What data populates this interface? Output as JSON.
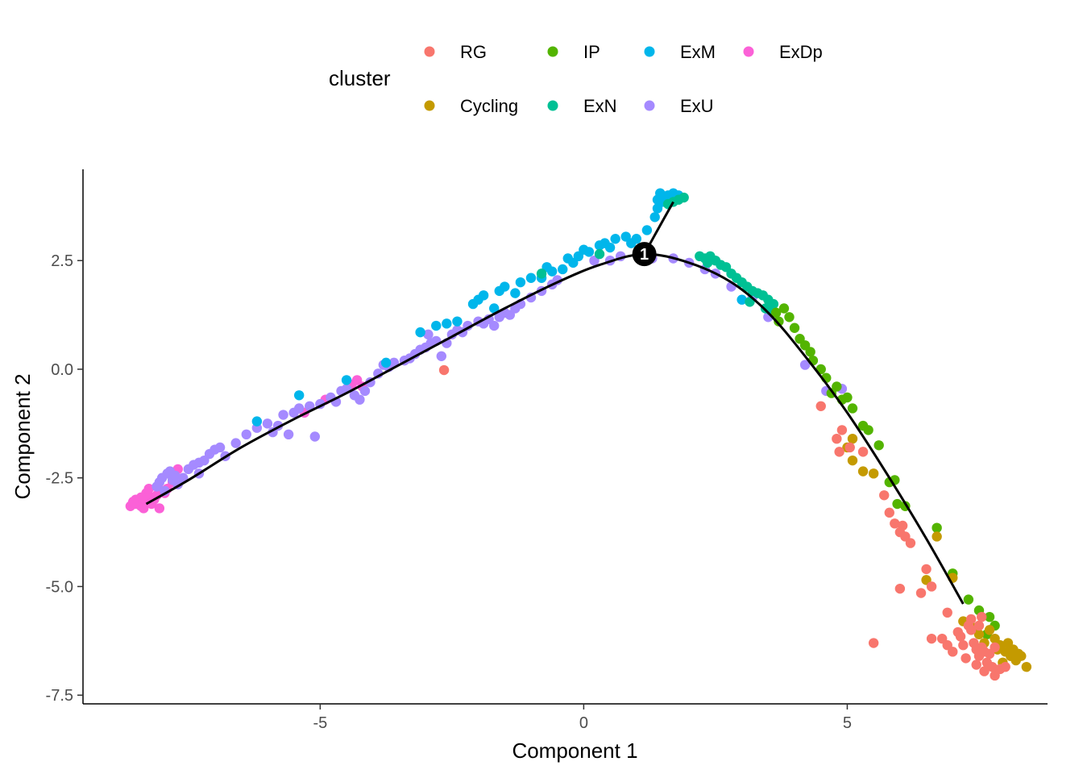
{
  "chart_data": {
    "type": "scatter",
    "xlabel": "Component 1",
    "ylabel": "Component 2",
    "xlim": [
      -9.5,
      8.8
    ],
    "ylim": [
      -7.7,
      4.6
    ],
    "xticks": [
      -5,
      0,
      5
    ],
    "xtick_labels": [
      "-5",
      "0",
      "5"
    ],
    "yticks": [
      2.5,
      0,
      -2.5,
      -5,
      -7.5
    ],
    "ytick_labels": [
      "2.5",
      "0.0",
      "-2.5",
      "-5.0",
      "-7.5"
    ],
    "grid": false,
    "legend": {
      "title": "cluster",
      "placement": "top",
      "entries": [
        {
          "label": "RG",
          "color": "#F8766D"
        },
        {
          "label": "Cycling",
          "color": "#C49A00"
        },
        {
          "label": "IP",
          "color": "#53B400"
        },
        {
          "label": "ExN",
          "color": "#00C094"
        },
        {
          "label": "ExM",
          "color": "#00B6EB"
        },
        {
          "label": "ExU",
          "color": "#A58AFF"
        },
        {
          "label": "ExDp",
          "color": "#FB61D7"
        }
      ]
    },
    "trajectory": {
      "branch_node": {
        "x": 1.15,
        "y": 2.65,
        "label": "1"
      },
      "main_path": [
        [
          -8.3,
          -3.1
        ],
        [
          -7.5,
          -2.55
        ],
        [
          -6.5,
          -1.8
        ],
        [
          -5.5,
          -1.15
        ],
        [
          -4.5,
          -0.55
        ],
        [
          -3.5,
          0.1
        ],
        [
          -2.5,
          0.75
        ],
        [
          -1.5,
          1.4
        ],
        [
          -0.5,
          2.0
        ],
        [
          0.3,
          2.4
        ],
        [
          1.15,
          2.65
        ],
        [
          2.0,
          2.45
        ],
        [
          2.8,
          2.0
        ],
        [
          3.5,
          1.3
        ],
        [
          4.2,
          0.3
        ],
        [
          5.0,
          -1.0
        ],
        [
          5.8,
          -2.5
        ],
        [
          6.5,
          -3.9
        ],
        [
          7.2,
          -5.4
        ]
      ],
      "branch_path": [
        [
          1.15,
          2.65
        ],
        [
          1.4,
          3.2
        ],
        [
          1.7,
          3.85
        ]
      ]
    },
    "series": [
      {
        "name": "ExDp",
        "color": "#FB61D7",
        "points": [
          [
            -8.6,
            -3.15
          ],
          [
            -8.5,
            -3.1
          ],
          [
            -8.4,
            -3.15
          ],
          [
            -8.3,
            -3.05
          ],
          [
            -8.5,
            -3.0
          ],
          [
            -8.2,
            -2.95
          ],
          [
            -8.1,
            -2.9
          ],
          [
            -8.3,
            -2.85
          ],
          [
            -8.0,
            -2.8
          ],
          [
            -7.9,
            -2.75
          ],
          [
            -8.4,
            -2.95
          ],
          [
            -8.2,
            -3.1
          ],
          [
            -8.35,
            -3.2
          ],
          [
            -8.55,
            -3.05
          ],
          [
            -7.8,
            -2.6
          ],
          [
            -8.05,
            -3.2
          ],
          [
            -7.7,
            -2.3
          ],
          [
            -5.3,
            -1.0
          ],
          [
            -4.4,
            -0.35
          ],
          [
            -4.9,
            -0.7
          ],
          [
            -4.2,
            -0.4
          ],
          [
            -4.3,
            -0.25
          ],
          [
            -8.15,
            -3.0
          ],
          [
            -7.95,
            -2.85
          ],
          [
            -8.25,
            -2.75
          ]
        ]
      },
      {
        "name": "ExU",
        "color": "#A58AFF",
        "points": [
          [
            -8.0,
            -2.5
          ],
          [
            -7.9,
            -2.4
          ],
          [
            -7.8,
            -2.55
          ],
          [
            -7.7,
            -2.65
          ],
          [
            -8.1,
            -2.7
          ],
          [
            -7.95,
            -2.8
          ],
          [
            -7.75,
            -2.45
          ],
          [
            -7.85,
            -2.35
          ],
          [
            -7.6,
            -2.5
          ],
          [
            -8.05,
            -2.6
          ],
          [
            -7.5,
            -2.3
          ],
          [
            -7.4,
            -2.2
          ],
          [
            -7.3,
            -2.15
          ],
          [
            -7.2,
            -2.1
          ],
          [
            -7.1,
            -1.95
          ],
          [
            -7.0,
            -1.85
          ],
          [
            -6.9,
            -1.8
          ],
          [
            -7.3,
            -2.4
          ],
          [
            -6.8,
            -2.0
          ],
          [
            -6.6,
            -1.7
          ],
          [
            -6.4,
            -1.5
          ],
          [
            -6.2,
            -1.35
          ],
          [
            -6.0,
            -1.25
          ],
          [
            -5.9,
            -1.45
          ],
          [
            -5.8,
            -1.3
          ],
          [
            -5.7,
            -1.05
          ],
          [
            -5.5,
            -1.0
          ],
          [
            -5.6,
            -1.5
          ],
          [
            -5.4,
            -0.9
          ],
          [
            -5.2,
            -0.85
          ],
          [
            -5.0,
            -0.8
          ],
          [
            -4.8,
            -0.65
          ],
          [
            -4.7,
            -0.75
          ],
          [
            -4.6,
            -0.5
          ],
          [
            -4.5,
            -0.45
          ],
          [
            -4.35,
            -0.6
          ],
          [
            -4.25,
            -0.7
          ],
          [
            -4.15,
            -0.5
          ],
          [
            -4.05,
            -0.3
          ],
          [
            -5.1,
            -1.55
          ],
          [
            -3.9,
            -0.1
          ],
          [
            -3.7,
            0.05
          ],
          [
            -3.8,
            0.1
          ],
          [
            -3.6,
            0.15
          ],
          [
            -3.4,
            0.2
          ],
          [
            -3.2,
            0.35
          ],
          [
            -3.1,
            0.45
          ],
          [
            -3.0,
            0.5
          ],
          [
            -2.9,
            0.6
          ],
          [
            -2.8,
            0.65
          ],
          [
            -2.7,
            0.3
          ],
          [
            -2.6,
            0.6
          ],
          [
            -2.5,
            0.8
          ],
          [
            -2.4,
            0.9
          ],
          [
            -2.3,
            0.85
          ],
          [
            -2.2,
            1.0
          ],
          [
            -2.0,
            1.1
          ],
          [
            -1.9,
            1.05
          ],
          [
            -1.8,
            1.15
          ],
          [
            -1.7,
            1.0
          ],
          [
            -1.6,
            1.2
          ],
          [
            -1.5,
            1.3
          ],
          [
            -1.4,
            1.25
          ],
          [
            -1.3,
            1.4
          ],
          [
            -1.2,
            1.5
          ],
          [
            -1.0,
            1.65
          ],
          [
            -0.8,
            1.8
          ],
          [
            -0.6,
            1.95
          ],
          [
            -0.5,
            2.05
          ],
          [
            0.2,
            2.5
          ],
          [
            0.5,
            2.5
          ],
          [
            0.7,
            2.6
          ],
          [
            1.3,
            2.55
          ],
          [
            1.7,
            2.55
          ],
          [
            2.0,
            2.45
          ],
          [
            2.3,
            2.3
          ],
          [
            2.5,
            2.2
          ],
          [
            2.8,
            1.9
          ],
          [
            3.2,
            1.65
          ],
          [
            3.5,
            1.2
          ],
          [
            4.2,
            0.1
          ],
          [
            4.6,
            -0.5
          ],
          [
            4.9,
            -0.45
          ],
          [
            -3.3,
            0.25
          ],
          [
            -2.95,
            0.8
          ]
        ]
      },
      {
        "name": "ExM",
        "color": "#00B6EB",
        "points": [
          [
            -6.2,
            -1.2
          ],
          [
            -5.4,
            -0.6
          ],
          [
            -4.5,
            -0.25
          ],
          [
            -3.75,
            0.15
          ],
          [
            -3.1,
            0.85
          ],
          [
            -2.8,
            1.0
          ],
          [
            -2.6,
            1.05
          ],
          [
            -2.4,
            1.1
          ],
          [
            -2.1,
            1.5
          ],
          [
            -2.0,
            1.6
          ],
          [
            -1.9,
            1.7
          ],
          [
            -1.7,
            1.4
          ],
          [
            -1.6,
            1.8
          ],
          [
            -1.5,
            1.9
          ],
          [
            -1.3,
            1.75
          ],
          [
            -1.2,
            2.0
          ],
          [
            -1.0,
            2.1
          ],
          [
            -0.8,
            2.1
          ],
          [
            -0.6,
            2.25
          ],
          [
            -0.4,
            2.3
          ],
          [
            -0.2,
            2.45
          ],
          [
            -0.1,
            2.6
          ],
          [
            0.1,
            2.7
          ],
          [
            0.3,
            2.85
          ],
          [
            0.4,
            2.9
          ],
          [
            0.6,
            3.0
          ],
          [
            0.8,
            3.05
          ],
          [
            1.0,
            3.0
          ],
          [
            0.9,
            2.9
          ],
          [
            0.5,
            2.8
          ],
          [
            -0.7,
            2.35
          ],
          [
            -0.3,
            2.55
          ],
          [
            0.0,
            2.75
          ],
          [
            1.2,
            3.2
          ],
          [
            1.35,
            3.5
          ],
          [
            1.4,
            3.7
          ],
          [
            1.5,
            3.85
          ],
          [
            1.6,
            4.0
          ],
          [
            1.45,
            4.05
          ],
          [
            1.7,
            4.05
          ],
          [
            1.55,
            3.95
          ],
          [
            1.8,
            4.0
          ],
          [
            1.4,
            3.9
          ],
          [
            3.0,
            1.6
          ]
        ]
      },
      {
        "name": "ExN",
        "color": "#00C094",
        "points": [
          [
            1.9,
            3.95
          ],
          [
            1.7,
            3.85
          ],
          [
            1.6,
            3.8
          ],
          [
            1.8,
            3.9
          ],
          [
            2.2,
            2.6
          ],
          [
            2.3,
            2.55
          ],
          [
            2.4,
            2.6
          ],
          [
            2.35,
            2.45
          ],
          [
            2.6,
            2.4
          ],
          [
            2.7,
            2.35
          ],
          [
            2.8,
            2.2
          ],
          [
            2.9,
            2.1
          ],
          [
            3.0,
            2.0
          ],
          [
            3.1,
            1.9
          ],
          [
            3.2,
            1.8
          ],
          [
            3.3,
            1.75
          ],
          [
            3.4,
            1.7
          ],
          [
            3.5,
            1.6
          ],
          [
            3.15,
            1.55
          ],
          [
            3.45,
            1.4
          ],
          [
            3.55,
            1.35
          ],
          [
            3.6,
            1.5
          ],
          [
            2.5,
            2.5
          ],
          [
            0.3,
            2.65
          ],
          [
            -0.8,
            2.2
          ]
        ]
      },
      {
        "name": "IP",
        "color": "#53B400",
        "points": [
          [
            3.65,
            1.3
          ],
          [
            3.7,
            1.1
          ],
          [
            3.8,
            1.4
          ],
          [
            3.9,
            1.2
          ],
          [
            4.0,
            0.95
          ],
          [
            4.1,
            0.7
          ],
          [
            4.2,
            0.55
          ],
          [
            4.3,
            0.4
          ],
          [
            4.35,
            0.2
          ],
          [
            4.5,
            0.0
          ],
          [
            4.6,
            -0.2
          ],
          [
            4.8,
            -0.4
          ],
          [
            4.9,
            -0.7
          ],
          [
            5.0,
            -0.65
          ],
          [
            5.1,
            -0.9
          ],
          [
            5.3,
            -1.3
          ],
          [
            5.4,
            -1.4
          ],
          [
            5.6,
            -1.75
          ],
          [
            5.8,
            -2.6
          ],
          [
            5.9,
            -2.55
          ],
          [
            5.95,
            -3.1
          ],
          [
            6.1,
            -3.15
          ],
          [
            6.7,
            -3.65
          ],
          [
            7.0,
            -4.7
          ],
          [
            7.3,
            -5.3
          ],
          [
            7.5,
            -5.55
          ],
          [
            7.7,
            -5.7
          ],
          [
            7.8,
            -5.9
          ],
          [
            7.65,
            -6.1
          ],
          [
            4.7,
            -0.55
          ]
        ]
      },
      {
        "name": "Cycling",
        "color": "#C49A00",
        "points": [
          [
            5.1,
            -1.6
          ],
          [
            5.0,
            -1.8
          ],
          [
            5.1,
            -2.1
          ],
          [
            5.3,
            -2.35
          ],
          [
            5.5,
            -2.4
          ],
          [
            6.5,
            -4.85
          ],
          [
            6.7,
            -3.85
          ],
          [
            7.0,
            -4.8
          ],
          [
            7.2,
            -5.8
          ],
          [
            7.4,
            -5.95
          ],
          [
            7.5,
            -6.1
          ],
          [
            7.7,
            -6.0
          ],
          [
            7.8,
            -6.2
          ],
          [
            7.9,
            -6.35
          ],
          [
            8.0,
            -6.5
          ],
          [
            8.1,
            -6.6
          ],
          [
            8.2,
            -6.7
          ],
          [
            8.3,
            -6.6
          ],
          [
            8.4,
            -6.85
          ],
          [
            7.85,
            -6.45
          ],
          [
            8.05,
            -6.3
          ],
          [
            7.6,
            -6.3
          ],
          [
            7.95,
            -6.75
          ],
          [
            8.15,
            -6.45
          ],
          [
            8.25,
            -6.55
          ]
        ]
      },
      {
        "name": "RG",
        "color": "#F8766D",
        "points": [
          [
            -2.65,
            -0.02
          ],
          [
            4.5,
            -0.85
          ],
          [
            4.9,
            -1.4
          ],
          [
            4.8,
            -1.6
          ],
          [
            4.85,
            -1.9
          ],
          [
            5.05,
            -1.8
          ],
          [
            5.3,
            -1.9
          ],
          [
            5.7,
            -2.9
          ],
          [
            5.8,
            -3.3
          ],
          [
            5.9,
            -3.55
          ],
          [
            6.0,
            -3.75
          ],
          [
            6.05,
            -3.6
          ],
          [
            6.1,
            -3.85
          ],
          [
            6.2,
            -4.0
          ],
          [
            6.5,
            -4.6
          ],
          [
            6.6,
            -5.0
          ],
          [
            6.4,
            -5.15
          ],
          [
            6.0,
            -5.05
          ],
          [
            6.9,
            -5.6
          ],
          [
            6.8,
            -6.2
          ],
          [
            6.9,
            -6.35
          ],
          [
            7.0,
            -6.5
          ],
          [
            7.15,
            -6.15
          ],
          [
            7.3,
            -5.9
          ],
          [
            7.4,
            -6.3
          ],
          [
            7.45,
            -6.45
          ],
          [
            7.5,
            -6.6
          ],
          [
            7.55,
            -6.4
          ],
          [
            7.6,
            -6.5
          ],
          [
            7.65,
            -6.75
          ],
          [
            7.7,
            -6.55
          ],
          [
            7.75,
            -6.85
          ],
          [
            7.8,
            -6.4
          ],
          [
            7.5,
            -5.9
          ],
          [
            7.35,
            -6.0
          ],
          [
            7.2,
            -6.35
          ],
          [
            7.25,
            -6.65
          ],
          [
            7.45,
            -6.8
          ],
          [
            7.6,
            -6.95
          ],
          [
            7.8,
            -7.05
          ],
          [
            7.9,
            -6.9
          ],
          [
            8.0,
            -6.85
          ],
          [
            7.55,
            -5.7
          ],
          [
            7.35,
            -5.75
          ],
          [
            7.1,
            -6.05
          ],
          [
            6.6,
            -6.2
          ],
          [
            5.5,
            -6.3
          ]
        ]
      }
    ]
  }
}
